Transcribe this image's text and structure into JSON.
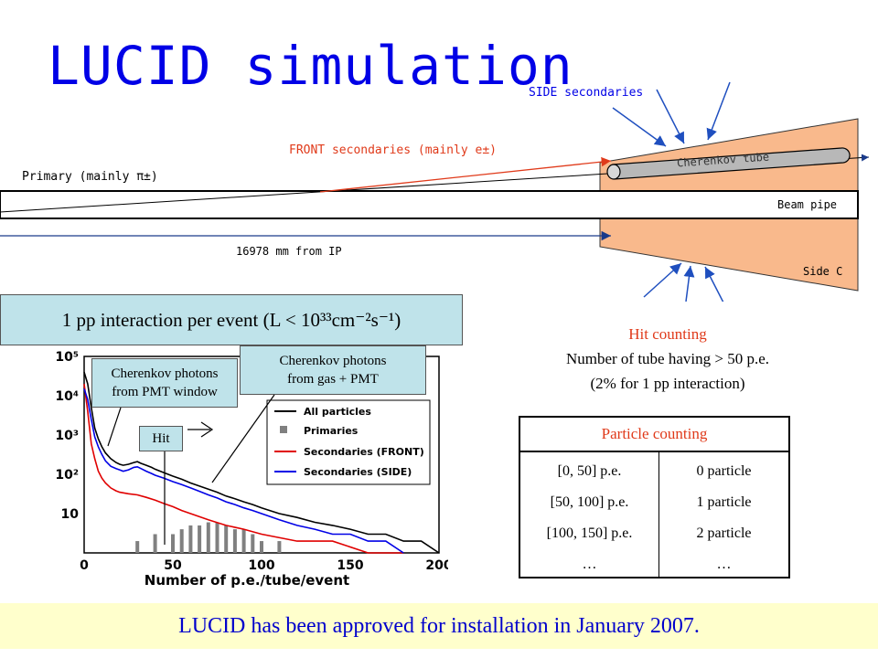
{
  "title": "LUCID simulation",
  "detector": {
    "side_secondaries": "SIDE secondaries",
    "front_secondaries": "FRONT secondaries (mainly e±)",
    "primary": "Primary (mainly π±)",
    "cherenkov_tube": "Cherenkov tube",
    "beam_pipe": "Beam pipe",
    "distance": "16978 mm from IP",
    "side_c": "Side C"
  },
  "banner": "1 pp interaction per event (L < 10³³cm⁻²s⁻¹)",
  "callouts": {
    "pmt_window_line1": "Cherenkov photons",
    "pmt_window_line2": "from PMT window",
    "gas_pmt_line1": "Cherenkov photons",
    "gas_pmt_line2": "from gas + PMT",
    "hit": "Hit"
  },
  "hit_counting": {
    "title": "Hit counting",
    "line1": "Number of tube having > 50 p.e.",
    "line2": "(2% for 1 pp interaction)"
  },
  "particle_counting": {
    "header": "Particle counting",
    "rows": [
      {
        "range": "[0, 50] p.e.",
        "result": "0 particle"
      },
      {
        "range": "[50, 100] p.e.",
        "result": "1 particle"
      },
      {
        "range": "[100, 150] p.e.",
        "result": "2 particle"
      },
      {
        "range": "…",
        "result": "…"
      }
    ]
  },
  "chart_data": {
    "type": "line",
    "xlabel": "Number of p.e./tube/event",
    "ylabel": "",
    "xlim": [
      0,
      200
    ],
    "ylim_log": [
      1,
      100000
    ],
    "log_y": true,
    "x_ticks": [
      "0",
      "50",
      "100",
      "150",
      "200"
    ],
    "y_ticks": [
      "10⁵",
      "10⁴",
      "10³",
      "10²",
      "10"
    ],
    "series": [
      {
        "name": "All particles",
        "color": "#000000",
        "x": [
          0,
          2,
          4,
          6,
          8,
          10,
          12,
          15,
          18,
          20,
          22,
          25,
          28,
          30,
          32,
          35,
          38,
          40,
          45,
          50,
          55,
          60,
          65,
          70,
          75,
          80,
          85,
          90,
          95,
          100,
          110,
          120,
          130,
          140,
          150,
          160,
          170,
          180,
          190,
          200
        ],
        "values": [
          40000,
          20000,
          5000,
          1500,
          800,
          500,
          350,
          250,
          200,
          180,
          170,
          180,
          200,
          210,
          190,
          170,
          150,
          135,
          110,
          90,
          75,
          60,
          50,
          42,
          35,
          28,
          24,
          20,
          17,
          14,
          10,
          8,
          6,
          5,
          4,
          3,
          3,
          2,
          2,
          1
        ]
      },
      {
        "name": "Primaries",
        "color": "#808080",
        "x": [
          0,
          10,
          20,
          30,
          40,
          50,
          55,
          60,
          65,
          70,
          75,
          80,
          85,
          90,
          95,
          100,
          110,
          120,
          130,
          140,
          150
        ],
        "values": [
          1,
          1,
          1,
          2,
          3,
          3,
          4,
          5,
          5,
          6,
          6,
          5,
          4,
          4,
          3,
          2,
          2,
          1,
          1,
          1,
          1
        ]
      },
      {
        "name": "Secondaries (FRONT)",
        "color": "#e00000",
        "x": [
          0,
          2,
          4,
          6,
          8,
          10,
          12,
          15,
          18,
          20,
          25,
          30,
          35,
          40,
          45,
          50,
          55,
          60,
          70,
          80,
          90,
          100,
          120,
          140,
          160,
          180
        ],
        "values": [
          20000,
          4000,
          600,
          250,
          120,
          80,
          60,
          45,
          38,
          35,
          32,
          30,
          26,
          22,
          18,
          15,
          12,
          10,
          7,
          5,
          4,
          3,
          2,
          2,
          1,
          1
        ]
      },
      {
        "name": "Secondaries (SIDE)",
        "color": "#0000e6",
        "x": [
          0,
          2,
          4,
          6,
          8,
          10,
          12,
          15,
          18,
          20,
          22,
          25,
          28,
          30,
          32,
          35,
          38,
          40,
          45,
          50,
          55,
          60,
          65,
          70,
          75,
          80,
          85,
          90,
          95,
          100,
          110,
          120,
          130,
          140,
          150,
          160,
          170,
          180
        ],
        "values": [
          15000,
          8000,
          2500,
          900,
          500,
          320,
          220,
          160,
          140,
          130,
          120,
          130,
          150,
          155,
          140,
          120,
          105,
          95,
          80,
          65,
          55,
          45,
          37,
          30,
          25,
          20,
          17,
          14,
          12,
          10,
          7,
          5,
          4,
          3,
          3,
          2,
          2,
          1
        ]
      }
    ]
  },
  "footer": "LUCID has been approved for installation in January 2007."
}
